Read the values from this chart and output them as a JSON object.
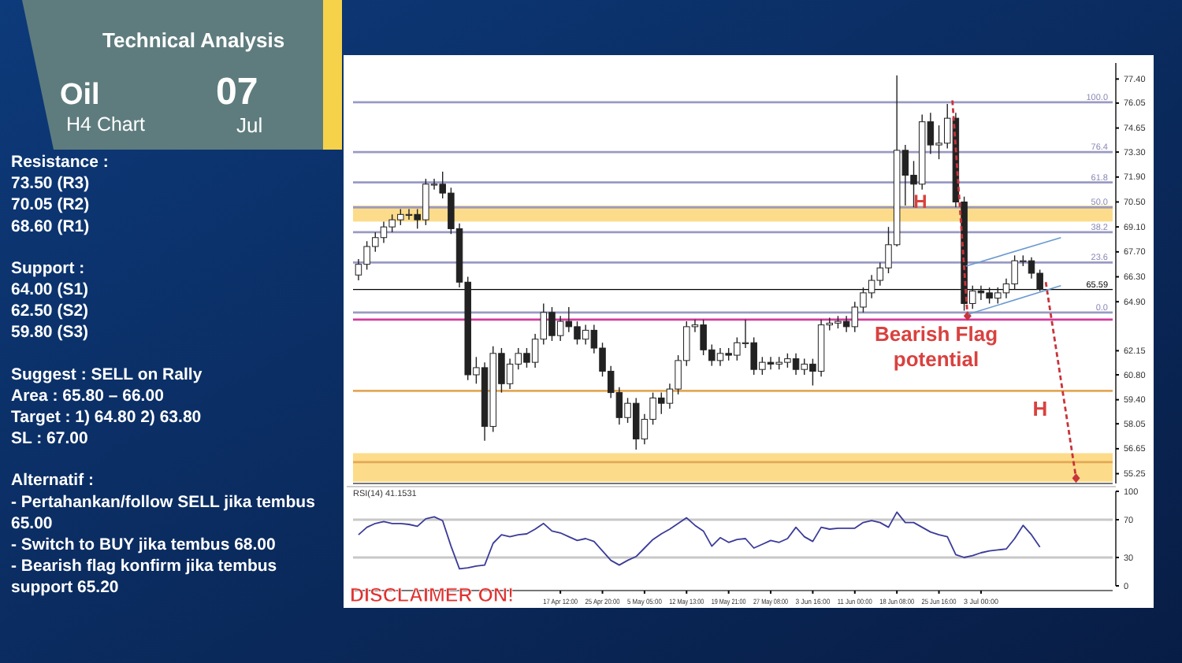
{
  "chart_data": [
    {
      "type": "other",
      "title": "Technical Analysis",
      "annotations": [
        "Oil",
        "H4 Chart",
        "07",
        "Jul",
        "Resistance :\n73.50 (R3)\n70.05 (R2)\n68.60 (R1)",
        "Support :\n64.00 (S1)\n62.50 (S2)\n59.80 (S3)",
        "Suggest :  SELL on Rally\nArea : 65.80 – 66.00\nTarget : 1)  64.80 2) 63.80\nSL : 67.00",
        "Alternatif :\n- Pertahankan/follow SELL jika tembus 65.00\n- Switch to BUY jika tembus 68.00\n- Bearish flag konfirm jika tembus support 65.20"
      ]
    },
    {
      "type": "candlestick",
      "tick_labels": "y",
      "categories": [
        null,
        null,
        null,
        null,
        null,
        null,
        null,
        null,
        null,
        null,
        null,
        null,
        null,
        null,
        null,
        null,
        null,
        null,
        null,
        null,
        null,
        null,
        null,
        null,
        null,
        null,
        null,
        null,
        null,
        null,
        null,
        null,
        null,
        null,
        null,
        null,
        null,
        null,
        null,
        null,
        null,
        null,
        null,
        null,
        null,
        null,
        null,
        null,
        null,
        null,
        null,
        null,
        null,
        null,
        null,
        null,
        null,
        null,
        null,
        null,
        null,
        null,
        null,
        null,
        null,
        null,
        null,
        null,
        null,
        null,
        null,
        null,
        null,
        null,
        null,
        null,
        null,
        null,
        null,
        null,
        null,
        null,
        null,
        null,
        null,
        null,
        null,
        null,
        null,
        null
      ],
      "ohlc": [
        [
          66.4,
          67.3,
          66.1,
          67.0
        ],
        [
          67.0,
          68.3,
          66.7,
          68.0
        ],
        [
          68.0,
          68.8,
          67.7,
          68.5
        ],
        [
          68.5,
          69.4,
          68.2,
          69.1
        ],
        [
          69.1,
          69.8,
          68.8,
          69.5
        ],
        [
          69.5,
          70.1,
          69.2,
          69.8
        ],
        [
          69.8,
          70.1,
          69.5,
          69.8
        ],
        [
          69.8,
          70.1,
          69.0,
          69.5
        ],
        [
          69.5,
          71.8,
          69.2,
          71.5
        ],
        [
          71.5,
          71.8,
          71.2,
          71.5
        ],
        [
          71.5,
          72.2,
          70.7,
          71.0
        ],
        [
          71.0,
          71.3,
          68.7,
          69.0
        ],
        [
          69.0,
          69.3,
          65.7,
          66.0
        ],
        [
          66.0,
          66.3,
          60.5,
          60.8
        ],
        [
          60.8,
          61.8,
          60.3,
          61.2
        ],
        [
          61.2,
          61.5,
          57.1,
          57.9
        ],
        [
          57.9,
          62.4,
          57.6,
          62.0
        ],
        [
          62.0,
          62.3,
          59.8,
          60.3
        ],
        [
          60.3,
          61.7,
          60.0,
          61.4
        ],
        [
          61.4,
          62.3,
          61.1,
          62.0
        ],
        [
          62.0,
          62.3,
          61.2,
          61.5
        ],
        [
          61.5,
          63.1,
          61.2,
          62.8
        ],
        [
          62.8,
          64.8,
          62.5,
          64.3
        ],
        [
          64.3,
          64.6,
          62.7,
          63.0
        ],
        [
          63.0,
          64.1,
          62.7,
          63.8
        ],
        [
          63.8,
          64.6,
          63.2,
          63.5
        ],
        [
          63.5,
          63.8,
          62.5,
          62.8
        ],
        [
          62.8,
          63.6,
          62.5,
          63.3
        ],
        [
          63.3,
          63.6,
          62.0,
          62.3
        ],
        [
          62.3,
          62.6,
          60.7,
          61.0
        ],
        [
          61.0,
          61.3,
          59.5,
          59.8
        ],
        [
          59.8,
          60.1,
          58.0,
          58.4
        ],
        [
          58.4,
          59.5,
          58.1,
          59.2
        ],
        [
          59.2,
          59.5,
          56.6,
          57.2
        ],
        [
          57.2,
          58.6,
          56.9,
          58.3
        ],
        [
          58.3,
          59.8,
          58.0,
          59.5
        ],
        [
          59.5,
          59.8,
          58.6,
          59.2
        ],
        [
          59.2,
          60.3,
          58.9,
          60.0
        ],
        [
          60.0,
          61.9,
          59.7,
          61.6
        ],
        [
          61.6,
          63.8,
          61.3,
          63.5
        ],
        [
          63.5,
          63.9,
          63.2,
          63.6
        ],
        [
          63.6,
          63.9,
          61.9,
          62.2
        ],
        [
          62.2,
          62.5,
          61.3,
          61.6
        ],
        [
          61.6,
          62.3,
          61.3,
          62.0
        ],
        [
          62.0,
          62.3,
          61.6,
          61.9
        ],
        [
          61.9,
          62.9,
          61.6,
          62.6
        ],
        [
          62.6,
          63.9,
          62.3,
          62.6
        ],
        [
          62.6,
          62.9,
          60.8,
          61.1
        ],
        [
          61.1,
          61.8,
          60.8,
          61.5
        ],
        [
          61.5,
          61.8,
          61.1,
          61.4
        ],
        [
          61.4,
          61.8,
          61.1,
          61.5
        ],
        [
          61.5,
          62.0,
          61.2,
          61.7
        ],
        [
          61.7,
          62.0,
          60.8,
          61.1
        ],
        [
          61.1,
          61.7,
          60.8,
          61.4
        ],
        [
          61.4,
          61.7,
          60.2,
          61.0
        ],
        [
          61.0,
          63.9,
          60.7,
          63.6
        ],
        [
          63.6,
          64.0,
          63.3,
          63.7
        ],
        [
          63.7,
          64.1,
          63.4,
          63.8
        ],
        [
          63.8,
          64.1,
          63.2,
          63.5
        ],
        [
          63.5,
          64.9,
          63.2,
          64.6
        ],
        [
          64.6,
          65.7,
          64.3,
          65.4
        ],
        [
          65.4,
          66.4,
          65.1,
          66.1
        ],
        [
          66.1,
          67.1,
          65.8,
          66.8
        ],
        [
          66.8,
          69.1,
          66.5,
          68.1
        ],
        [
          68.1,
          77.6,
          68.0,
          73.4
        ],
        [
          73.4,
          73.7,
          70.3,
          72.0
        ],
        [
          72.0,
          72.8,
          70.2,
          71.5
        ],
        [
          71.5,
          75.4,
          71.2,
          75.0
        ],
        [
          75.0,
          75.5,
          73.2,
          73.7
        ],
        [
          73.7,
          74.8,
          72.9,
          73.8
        ],
        [
          73.8,
          76.0,
          73.5,
          75.2
        ],
        [
          75.2,
          75.5,
          70.2,
          70.5
        ],
        [
          70.5,
          70.8,
          64.4,
          64.8
        ],
        [
          64.8,
          65.8,
          64.5,
          65.5
        ],
        [
          65.5,
          65.8,
          65.0,
          65.4
        ],
        [
          65.4,
          65.7,
          64.8,
          65.1
        ],
        [
          65.1,
          65.7,
          64.8,
          65.4
        ],
        [
          65.4,
          66.2,
          65.1,
          65.9
        ],
        [
          65.9,
          67.5,
          65.6,
          67.2
        ],
        [
          67.2,
          67.5,
          66.9,
          67.2
        ],
        [
          67.2,
          67.4,
          66.2,
          66.5
        ],
        [
          66.5,
          66.7,
          65.5,
          65.6
        ],
        null,
        null,
        null,
        null,
        null,
        null,
        null,
        null
      ],
      "ylim": [
        54.7,
        78.3
      ],
      "yticks": [
        {
          "value": 77.4,
          "label": "77.40"
        },
        76.05,
        74.65,
        {
          "value": 73.3,
          "label": "73.30"
        },
        {
          "value": 71.9,
          "label": "71.90"
        },
        {
          "value": 70.5,
          "label": "70.50"
        },
        {
          "value": 69.1,
          "label": "69.10"
        },
        {
          "value": 67.7,
          "label": "67.70"
        },
        {
          "value": 66.3,
          "label": "66.30"
        },
        {
          "value": 64.9,
          "label": "64.90"
        },
        62.15,
        {
          "value": 60.8,
          "label": "60.80"
        },
        {
          "value": 59.4,
          "label": "59.40"
        },
        58.05,
        56.65,
        55.25
      ],
      "bands": [
        {
          "axis": "y",
          "from": 54.8,
          "to": 56.4,
          "color": "#fbd675"
        },
        {
          "axis": "y",
          "from": 69.4,
          "to": 70.3,
          "color": "#fbd675"
        }
      ],
      "ref_lines": [
        {
          "axis": "y",
          "value": 63.9,
          "color": "#d43a9e"
        },
        {
          "axis": "y",
          "value": 59.9,
          "color": "#e3a857"
        },
        {
          "axis": "y",
          "value": 55.9,
          "color": "#e3a857"
        },
        {
          "axis": "y",
          "value": 65.59,
          "label": "65.59",
          "color": "#000000"
        },
        {
          "axis": "y",
          "value": 76.1,
          "color": "#9a9ac4"
        },
        {
          "axis": "y",
          "value": 73.3,
          "color": "#9a9ac4"
        },
        {
          "axis": "y",
          "value": 71.6,
          "color": "#9a9ac4"
        },
        {
          "axis": "y",
          "value": 70.2,
          "color": "#9a9ac4"
        },
        {
          "axis": "y",
          "value": 68.8,
          "color": "#9a9ac4"
        },
        {
          "axis": "y",
          "value": 67.1,
          "color": "#9a9ac4"
        },
        {
          "axis": "y",
          "value": 64.3,
          "color": "#9a9ac4"
        }
      ],
      "annotations": [
        "H",
        {
          "text": "Bearish Flag potential",
          "y": 64.3
        },
        "H",
        {
          "text": "100.0",
          "y": 76.1
        },
        {
          "text": "76.4",
          "y": 73.3
        },
        {
          "text": "61.8",
          "y": 71.6
        },
        {
          "text": "50.0",
          "y": 70.2
        },
        {
          "text": "38.2",
          "y": 68.8
        },
        {
          "text": "23.6",
          "y": 67.1
        },
        {
          "text": "0.0",
          "y": 64.3
        }
      ]
    },
    {
      "type": "line",
      "categories": [
        null,
        null,
        null,
        null,
        null,
        null,
        null,
        null,
        null,
        null,
        null,
        null,
        null,
        null,
        null,
        null,
        null,
        null,
        null,
        null,
        null,
        null,
        null,
        null,
        "17 Apr 12:00",
        null,
        null,
        null,
        null,
        "25 Apr 20:00",
        null,
        null,
        null,
        null,
        "5 May 05:00",
        null,
        null,
        null,
        null,
        "12 May 13:00",
        null,
        null,
        null,
        null,
        "19 May 21:00",
        null,
        null,
        null,
        null,
        "27 May 08:00",
        null,
        null,
        null,
        null,
        "3 Jun 16:00",
        null,
        null,
        null,
        null,
        "11 Jun 00:00",
        null,
        null,
        null,
        null,
        "18 Jun 08:00",
        null,
        null,
        null,
        null,
        "25 Jun 16:00",
        null,
        null,
        null,
        null,
        "3 Jul 00:00",
        null,
        null,
        null,
        null,
        null,
        null,
        null,
        null,
        null,
        null,
        null,
        null,
        null,
        null,
        null
      ],
      "series": [
        {
          "color": "#3b3b9a",
          "values": [
            54,
            62,
            66,
            68,
            66,
            66,
            65,
            63,
            71,
            73,
            69,
            42,
            18,
            19,
            21,
            22,
            45,
            54,
            52,
            54,
            55,
            60,
            66,
            58,
            56,
            52,
            48,
            50,
            47,
            37,
            27,
            22,
            27,
            31,
            40,
            49,
            55,
            60,
            66,
            72,
            64,
            58,
            42,
            51,
            46,
            49,
            50,
            40,
            44,
            48,
            46,
            50,
            62,
            52,
            47,
            62,
            60,
            61,
            61,
            61,
            67,
            69,
            67,
            62,
            78,
            67,
            67,
            62,
            57,
            54,
            52,
            33,
            30,
            32,
            35,
            37,
            38,
            39,
            50,
            64,
            54,
            41,
            null,
            null,
            null,
            null,
            null,
            null,
            null,
            null
          ]
        }
      ],
      "ylim": [
        0,
        100
      ],
      "yticks": [
        100,
        70,
        30,
        0
      ],
      "ref_lines": [
        {
          "axis": "y",
          "value": 70,
          "color": "#c8c8c8"
        },
        {
          "axis": "y",
          "value": 30,
          "color": "#c8c8c8"
        }
      ],
      "annotations": [
        "RSI(14) 41.1531",
        "DISCLAIMER ON!"
      ]
    }
  ]
}
